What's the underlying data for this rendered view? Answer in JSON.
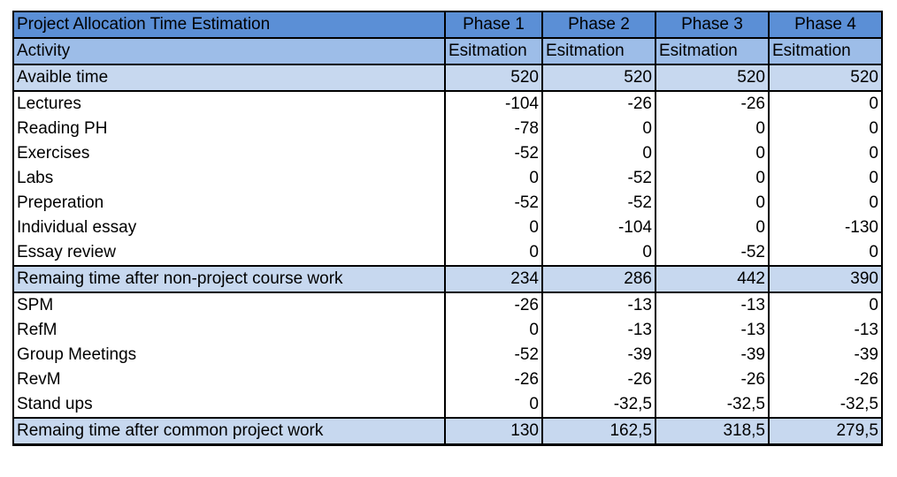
{
  "header": {
    "title": "Project Allocation Time Estimation",
    "phases": [
      "Phase 1",
      "Phase 2",
      "Phase 3",
      "Phase 4"
    ]
  },
  "subheader": {
    "label": "Activity",
    "cols": [
      "Esitmation",
      "Esitmation",
      "Esitmation",
      "Esitmation"
    ]
  },
  "available": {
    "label": "Avaible time",
    "values": [
      "520",
      "520",
      "520",
      "520"
    ]
  },
  "course_work": [
    {
      "label": "Lectures",
      "values": [
        "-104",
        "-26",
        "-26",
        "0"
      ]
    },
    {
      "label": "Reading PH",
      "values": [
        "-78",
        "0",
        "0",
        "0"
      ]
    },
    {
      "label": "Exercises",
      "values": [
        "-52",
        "0",
        "0",
        "0"
      ]
    },
    {
      "label": "Labs",
      "values": [
        "0",
        "-52",
        "0",
        "0"
      ]
    },
    {
      "label": "Preperation",
      "values": [
        "-52",
        "-52",
        "0",
        "0"
      ]
    },
    {
      "label": "Individual essay",
      "values": [
        "0",
        "-104",
        "0",
        "-130"
      ]
    },
    {
      "label": "Essay review",
      "values": [
        "0",
        "0",
        "-52",
        "0"
      ]
    }
  ],
  "subtotal1": {
    "label": "Remaing time after non-project course work",
    "values": [
      "234",
      "286",
      "442",
      "390"
    ]
  },
  "project_work": [
    {
      "label": "SPM",
      "values": [
        "-26",
        "-13",
        "-13",
        "0"
      ]
    },
    {
      "label": "RefM",
      "values": [
        "0",
        "-13",
        "-13",
        "-13"
      ]
    },
    {
      "label": "Group Meetings",
      "values": [
        "-52",
        "-39",
        "-39",
        "-39"
      ]
    },
    {
      "label": "RevM",
      "values": [
        "-26",
        "-26",
        "-26",
        "-26"
      ]
    },
    {
      "label": "Stand ups",
      "values": [
        "0",
        "-32,5",
        "-32,5",
        "-32,5"
      ]
    }
  ],
  "subtotal2": {
    "label": "Remaing time after common project work",
    "values": [
      "130",
      "162,5",
      "318,5",
      "279,5"
    ]
  }
}
